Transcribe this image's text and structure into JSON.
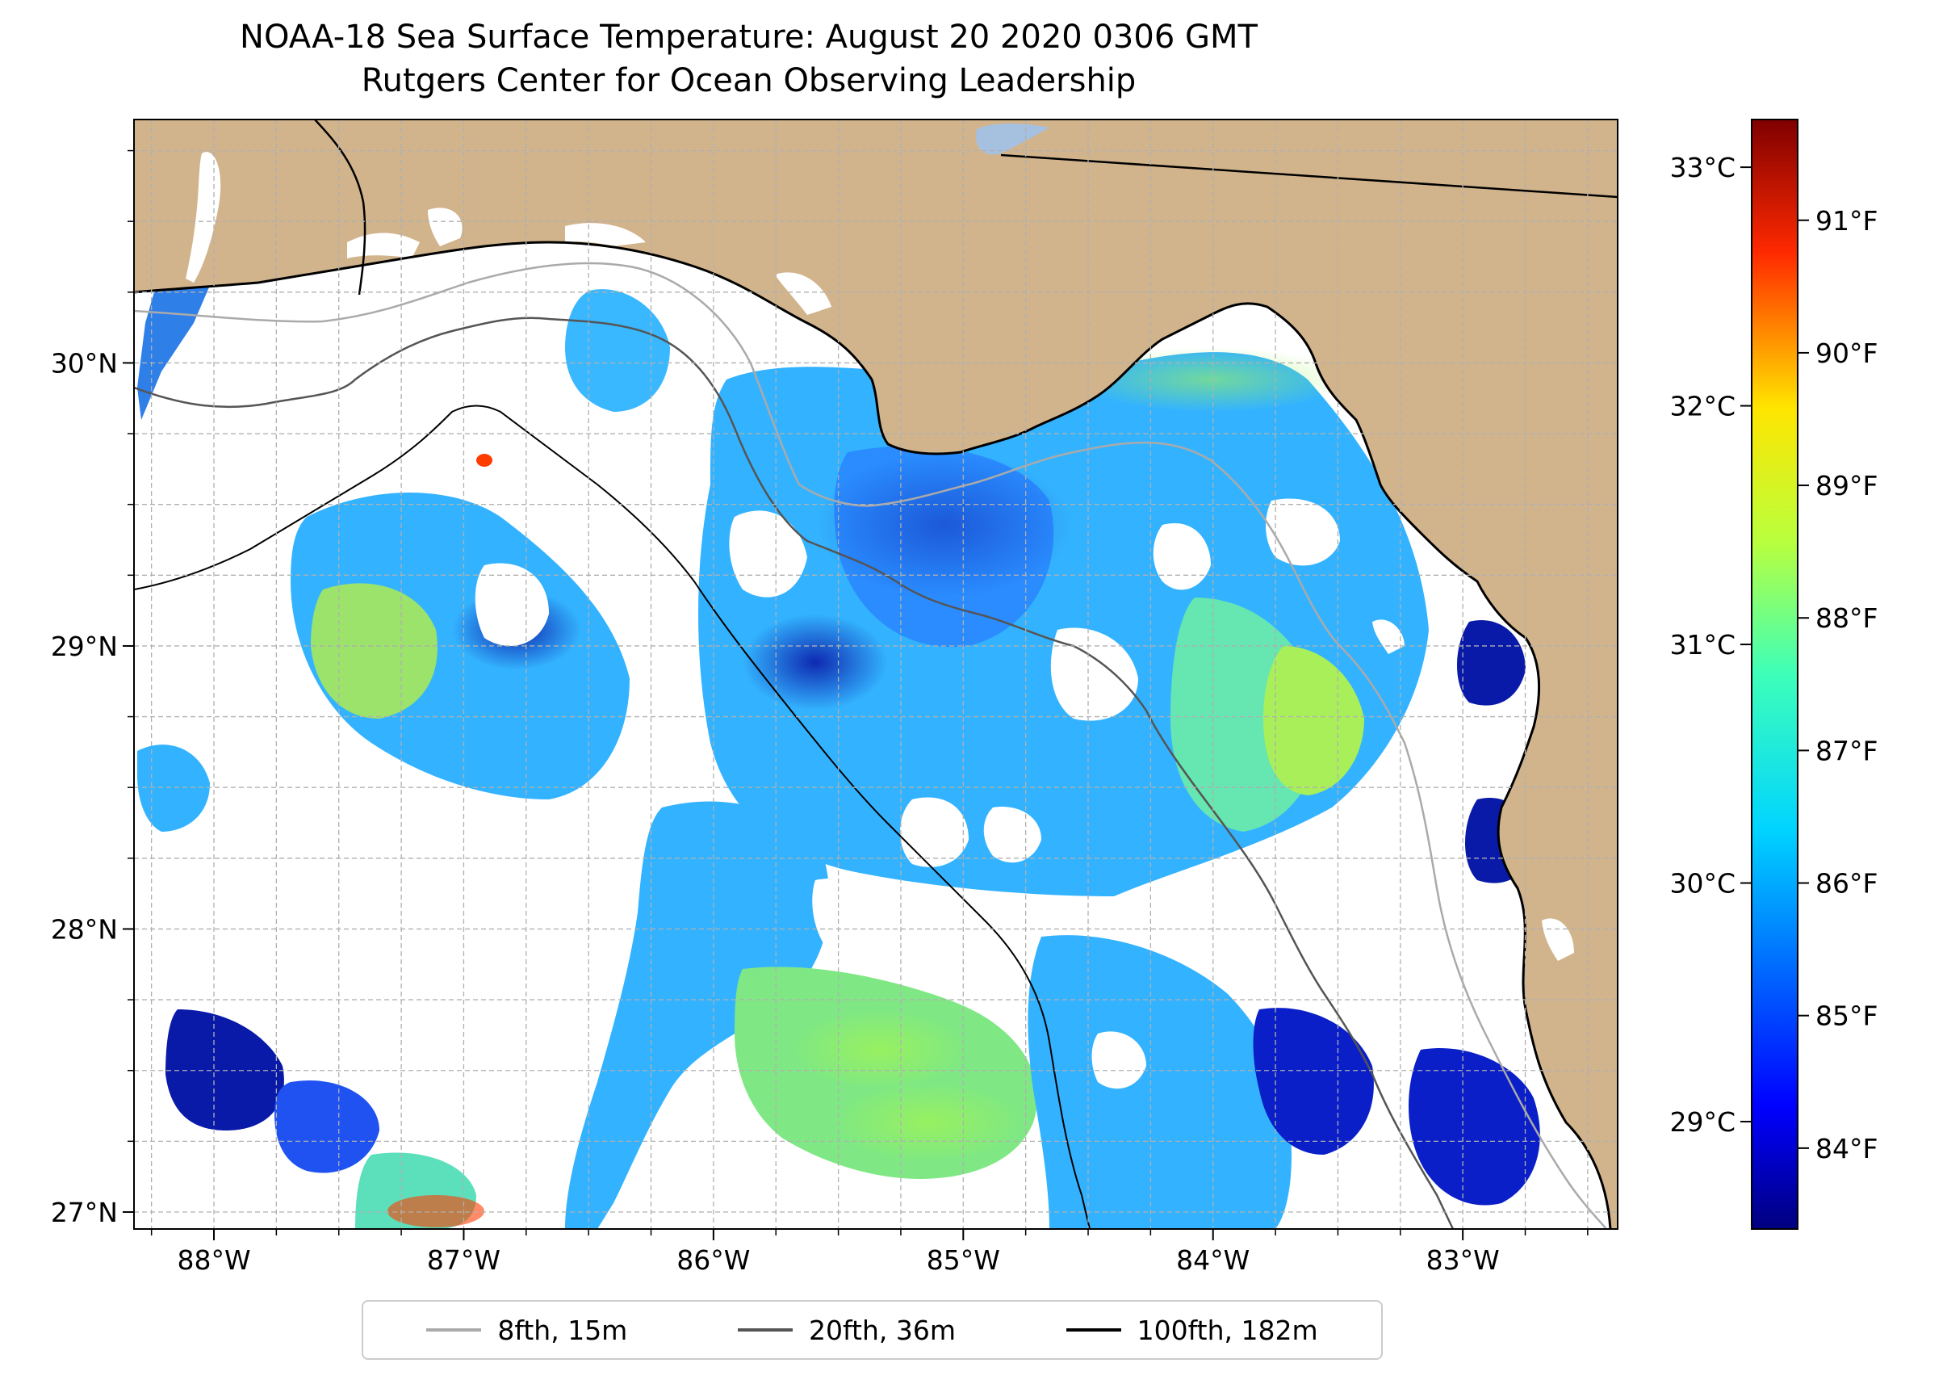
{
  "title": "NOAA-18 Sea Surface Temperature: August 20 2020 0306 GMT",
  "subtitle": "Rutgers Center for Ocean Observing Leadership",
  "map": {
    "lon_range": [
      -88.32,
      -82.38
    ],
    "lat_range": [
      26.94,
      30.86
    ],
    "lon_ticks": [
      {
        "value": -88,
        "label": "88°W"
      },
      {
        "value": -87,
        "label": "87°W"
      },
      {
        "value": -86,
        "label": "86°W"
      },
      {
        "value": -85,
        "label": "85°W"
      },
      {
        "value": -84,
        "label": "84°W"
      },
      {
        "value": -83,
        "label": "83°W"
      }
    ],
    "lat_ticks": [
      {
        "value": 27,
        "label": "27°N"
      },
      {
        "value": 28,
        "label": "28°N"
      },
      {
        "value": 29,
        "label": "29°N"
      },
      {
        "value": 30,
        "label": "30°N"
      }
    ],
    "grid": true,
    "land_color": "#d2b48c",
    "lake_color": "#a6c0e0",
    "no_data_color": "#ffffff"
  },
  "colorbar": {
    "colormap": "jet",
    "celsius_ticks": [
      {
        "value": 29,
        "label": "29°C"
      },
      {
        "value": 30,
        "label": "30°C"
      },
      {
        "value": 31,
        "label": "31°C"
      },
      {
        "value": 32,
        "label": "32°C"
      },
      {
        "value": 33,
        "label": "33°C"
      }
    ],
    "fahrenheit_ticks": [
      {
        "value": 84,
        "label": "84°F"
      },
      {
        "value": 85,
        "label": "85°F"
      },
      {
        "value": 86,
        "label": "86°F"
      },
      {
        "value": 87,
        "label": "87°F"
      },
      {
        "value": 88,
        "label": "88°F"
      },
      {
        "value": 89,
        "label": "89°F"
      },
      {
        "value": 90,
        "label": "90°F"
      },
      {
        "value": 91,
        "label": "91°F"
      }
    ],
    "range_celsius": [
      28.55,
      33.2
    ]
  },
  "legend": [
    {
      "label": "8fth, 15m",
      "color": "#aaaaaa"
    },
    {
      "label": "20fth, 36m",
      "color": "#555555"
    },
    {
      "label": "100fth, 182m",
      "color": "#000000"
    }
  ]
}
